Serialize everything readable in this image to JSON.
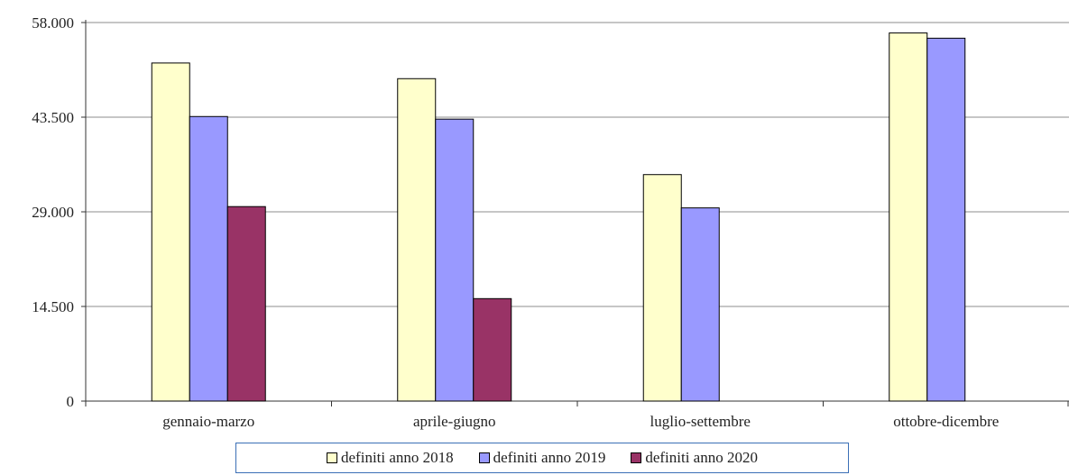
{
  "chart_data": {
    "type": "bar",
    "categories": [
      "gennaio-marzo",
      "aprile-giugno",
      "luglio-settembre",
      "ottobre-dicembre"
    ],
    "series": [
      {
        "name": "definiti anno 2018",
        "color": "#ffffcc",
        "values": [
          51800,
          49400,
          34700,
          56400
        ]
      },
      {
        "name": "definiti anno 2019",
        "color": "#9999ff",
        "values": [
          43600,
          43200,
          29600,
          55600
        ]
      },
      {
        "name": "definiti anno 2020",
        "color": "#993366",
        "values": [
          29800,
          15700,
          null,
          null
        ]
      }
    ],
    "yticks": [
      "0",
      "14.500",
      "29.000",
      "43.500",
      "58.000"
    ],
    "ylim": [
      0,
      58000
    ],
    "grid": true,
    "legend_position": "bottom"
  }
}
